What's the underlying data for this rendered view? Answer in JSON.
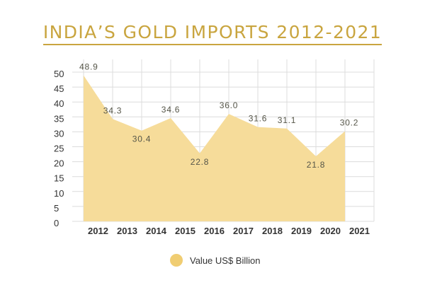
{
  "chart_data": {
    "type": "area",
    "title": "INDIA’S GOLD IMPORTS 2012-2021",
    "categories": [
      "2012",
      "2013",
      "2014",
      "2015",
      "2016",
      "2017",
      "2018",
      "2019",
      "2020",
      "2021"
    ],
    "series": [
      {
        "name": "Value US$ Billion",
        "values": [
          48.9,
          34.3,
          30.4,
          34.6,
          22.8,
          36.0,
          31.6,
          31.1,
          21.8,
          30.2
        ],
        "labels": [
          "48.9",
          "34.3",
          "30.4",
          "34.6",
          "22.8",
          "36.0",
          "31.6",
          "31.1",
          "21.8",
          "30.2"
        ]
      }
    ],
    "y_ticks": [
      "0",
      "5",
      "10",
      "15",
      "20",
      "25",
      "30",
      "35",
      "40",
      "45",
      "50"
    ],
    "ylim": [
      0,
      50
    ],
    "grid": true,
    "legend_position": "bottom-center",
    "colors": {
      "fill": "#f6dc9a",
      "grid": "#dcdcdc",
      "title": "#c9a53f",
      "legend": "#f0cd72"
    }
  }
}
